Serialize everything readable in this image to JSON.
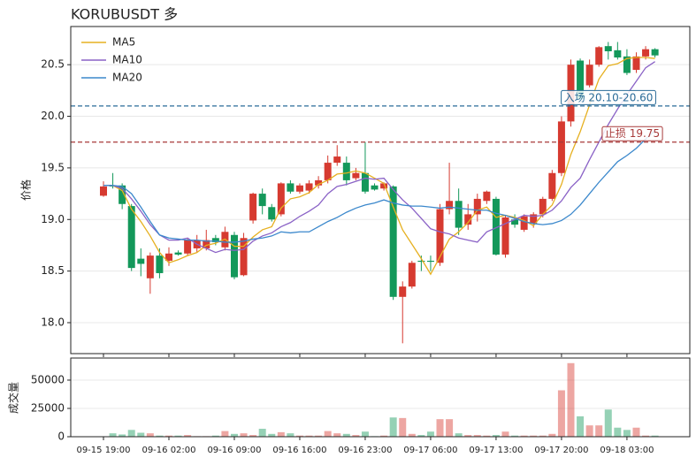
{
  "chart_data": {
    "type": "candlestick",
    "title": "KORUBUSDT  多",
    "ylabel": "价格",
    "categories": [
      "09-15 19:00",
      null,
      null,
      null,
      null,
      null,
      null,
      "09-16 02:00",
      null,
      null,
      null,
      null,
      null,
      null,
      "09-16 09:00",
      null,
      null,
      null,
      null,
      null,
      null,
      "09-16 16:00",
      null,
      null,
      null,
      null,
      null,
      null,
      "09-16 23:00",
      null,
      null,
      null,
      null,
      null,
      null,
      "09-17 06:00",
      null,
      null,
      null,
      null,
      null,
      null,
      "09-17 13:00",
      null,
      null,
      null,
      null,
      null,
      null,
      "09-17 20:00",
      null,
      null,
      null,
      null,
      null,
      null,
      "09-18 03:00",
      null,
      null,
      null
    ],
    "open": [
      19.23,
      19.33,
      19.33,
      19.13,
      18.62,
      18.43,
      18.65,
      18.6,
      18.68,
      18.67,
      18.72,
      18.72,
      18.82,
      18.73,
      18.85,
      18.46,
      18.99,
      19.25,
      19.12,
      19.05,
      19.35,
      19.27,
      19.28,
      19.33,
      19.38,
      19.55,
      19.55,
      19.4,
      19.45,
      19.33,
      19.3,
      19.32,
      18.25,
      18.35,
      18.6,
      18.6,
      18.58,
      19.1,
      19.18,
      18.95,
      19.05,
      19.18,
      19.2,
      18.66,
      19.0,
      18.9,
      18.96,
      19.05,
      19.2,
      19.45,
      19.95,
      20.54,
      20.3,
      20.5,
      20.68,
      20.64,
      20.58,
      20.45,
      20.58,
      20.65
    ],
    "high": [
      19.37,
      19.45,
      19.35,
      19.15,
      18.72,
      18.68,
      18.72,
      18.73,
      18.7,
      18.82,
      18.85,
      18.9,
      18.85,
      18.93,
      18.88,
      18.87,
      19.26,
      19.3,
      19.15,
      19.36,
      19.38,
      19.35,
      19.38,
      19.42,
      19.62,
      19.72,
      19.61,
      19.5,
      19.75,
      19.35,
      19.36,
      19.33,
      18.4,
      18.6,
      18.65,
      18.65,
      19.15,
      19.55,
      19.3,
      19.15,
      19.25,
      19.28,
      19.22,
      19.04,
      19.05,
      19.05,
      19.07,
      19.22,
      19.48,
      20.0,
      20.55,
      20.56,
      20.55,
      20.68,
      20.72,
      20.72,
      20.65,
      20.62,
      20.68,
      20.66
    ],
    "low": [
      19.22,
      19.3,
      19.1,
      18.5,
      18.45,
      18.28,
      18.43,
      18.55,
      18.65,
      18.65,
      18.68,
      18.7,
      18.75,
      18.7,
      18.42,
      18.45,
      18.96,
      19.05,
      18.98,
      19.03,
      19.25,
      19.25,
      19.25,
      19.3,
      19.35,
      19.52,
      19.33,
      19.38,
      19.25,
      19.28,
      19.28,
      18.22,
      17.8,
      18.33,
      18.5,
      18.5,
      18.55,
      19.05,
      18.85,
      18.9,
      18.98,
      19.15,
      18.65,
      18.63,
      18.92,
      18.88,
      18.92,
      19.02,
      19.18,
      19.42,
      19.9,
      20.15,
      20.28,
      20.48,
      20.55,
      20.55,
      20.4,
      20.42,
      20.55,
      20.57
    ],
    "close": [
      19.32,
      19.32,
      19.15,
      18.53,
      18.57,
      18.65,
      18.48,
      18.67,
      18.66,
      18.8,
      18.8,
      18.8,
      18.78,
      18.88,
      18.44,
      18.82,
      19.25,
      19.13,
      19.0,
      19.35,
      19.27,
      19.33,
      19.35,
      19.38,
      19.55,
      19.61,
      19.38,
      19.45,
      19.27,
      19.29,
      19.35,
      18.25,
      18.35,
      18.58,
      18.59,
      18.59,
      19.1,
      19.18,
      18.92,
      19.05,
      19.2,
      19.27,
      18.66,
      19.02,
      18.95,
      19.03,
      19.05,
      19.2,
      19.45,
      19.95,
      20.5,
      20.17,
      20.5,
      20.67,
      20.63,
      20.57,
      20.42,
      20.58,
      20.65,
      20.59
    ],
    "up_color": "#d63a30",
    "down_color": "#13985a",
    "series": [
      {
        "name": "MA5",
        "color": "#e6b020",
        "values": [
          19.33,
          19.33,
          19.28,
          19.1,
          18.98,
          18.84,
          18.68,
          18.58,
          18.61,
          18.65,
          18.68,
          18.75,
          18.77,
          18.81,
          18.74,
          18.74,
          18.83,
          18.9,
          18.93,
          19.11,
          19.2,
          19.22,
          19.26,
          19.34,
          19.38,
          19.44,
          19.45,
          19.47,
          19.45,
          19.4,
          19.35,
          19.12,
          18.9,
          18.76,
          18.62,
          18.47,
          18.64,
          18.81,
          18.88,
          18.97,
          19.09,
          19.12,
          19.02,
          19.04,
          19.02,
          18.99,
          18.94,
          19.05,
          19.14,
          19.34,
          19.63,
          19.85,
          20.11,
          20.36,
          20.49,
          20.51,
          20.56,
          20.57,
          20.57,
          20.56
        ]
      },
      {
        "name": "MA10",
        "color": "#8a62c6",
        "values": [
          19.33,
          19.33,
          19.3,
          19.2,
          19.08,
          18.95,
          18.85,
          18.8,
          18.8,
          18.82,
          18.76,
          18.72,
          18.68,
          18.71,
          18.7,
          18.71,
          18.79,
          18.84,
          18.87,
          18.93,
          18.97,
          19.03,
          19.08,
          19.14,
          19.25,
          19.32,
          19.34,
          19.37,
          19.4,
          19.39,
          19.4,
          19.29,
          19.19,
          19.11,
          19.01,
          18.91,
          18.88,
          18.86,
          18.82,
          18.8,
          18.78,
          18.88,
          18.92,
          18.96,
          19.0,
          19.04,
          19.03,
          19.04,
          19.09,
          19.18,
          19.31,
          19.4,
          19.58,
          19.75,
          19.92,
          20.07,
          20.21,
          20.34,
          20.47,
          20.53
        ]
      },
      {
        "name": "MA20",
        "color": "#3b88cc",
        "values": [
          19.33,
          19.33,
          19.32,
          19.25,
          19.12,
          18.98,
          18.85,
          18.82,
          18.81,
          18.8,
          18.8,
          18.79,
          18.79,
          18.78,
          18.78,
          18.79,
          18.81,
          18.82,
          18.84,
          18.88,
          18.87,
          18.88,
          18.88,
          18.93,
          18.98,
          19.02,
          19.07,
          19.11,
          19.14,
          19.16,
          19.19,
          19.16,
          19.14,
          19.13,
          19.13,
          19.12,
          19.11,
          19.12,
          19.11,
          19.1,
          19.09,
          19.09,
          19.06,
          19.04,
          19.01,
          18.98,
          18.96,
          18.95,
          18.96,
          18.99,
          19.05,
          19.14,
          19.25,
          19.36,
          19.46,
          19.56,
          19.62,
          19.69,
          19.78,
          19.86
        ]
      }
    ],
    "legend": "upper left",
    "grid": true,
    "ylim": [
      17.7,
      20.87
    ],
    "yticks": [
      {
        "value": 18.0,
        "label": "18.0"
      },
      18.5,
      {
        "value": 19.0,
        "label": "19.0"
      },
      19.5,
      {
        "value": 20.0,
        "label": "20.0"
      },
      20.5
    ],
    "hlines": [
      {
        "value": 20.1,
        "label": "入场 20.10-20.60",
        "color": "#2a6b98"
      },
      {
        "value": 19.75,
        "label": "止损 19.75",
        "color": "#a83a3a"
      }
    ],
    "volume": {
      "ylabel": "成交量",
      "values": [
        300,
        3000,
        2000,
        6000,
        3500,
        3000,
        1000,
        1000,
        1000,
        1500,
        500,
        500,
        1000,
        5000,
        2500,
        3000,
        1500,
        7000,
        2500,
        4000,
        3000,
        1000,
        1000,
        1000,
        5000,
        3000,
        2500,
        1500,
        4500,
        500,
        1000,
        17000,
        16500,
        2500,
        1500,
        4500,
        15500,
        15500,
        3000,
        1500,
        1500,
        1000,
        1500,
        4500,
        1000,
        1000,
        1000,
        1000,
        2500,
        41000,
        65000,
        18000,
        10000,
        10000,
        24000,
        8000,
        6000,
        8000,
        1000,
        1000
      ],
      "ylim": [
        0,
        69500
      ],
      "yticks": [
        0,
        25000,
        50000
      ]
    }
  }
}
